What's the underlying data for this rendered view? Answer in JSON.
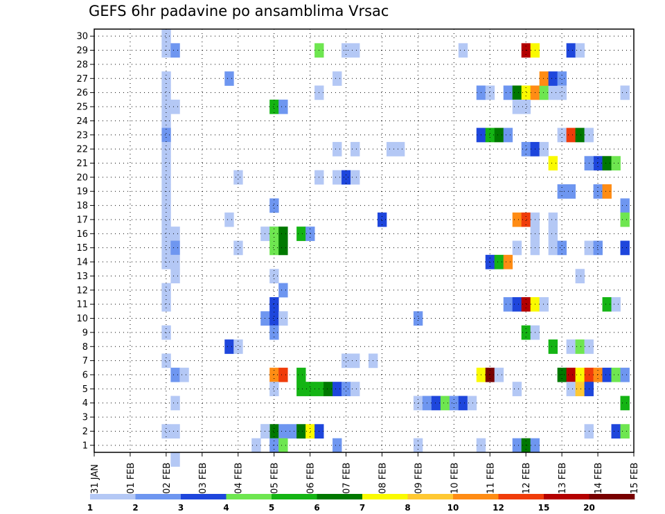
{
  "chart_data": {
    "type": "heatmap",
    "title": "GEFS 6hr padavine po ansamblima Vrsac",
    "xlabel": "",
    "ylabel": "",
    "x_tick_labels": [
      "31 JAN",
      "01 FEB",
      "02 FEB",
      "03 FEB",
      "04 FEB",
      "05 FEB",
      "06 FEB",
      "07 FEB",
      "08 FEB",
      "09 FEB",
      "10 FEB",
      "11 FEB",
      "12 FEB",
      "13 FEB",
      "14 FEB",
      "15 FEB"
    ],
    "x_unit": "days since 31 JAN (6-hourly steps)",
    "y_tick_labels": [
      "1",
      "2",
      "3",
      "4",
      "5",
      "6",
      "7",
      "8",
      "9",
      "10",
      "11",
      "12",
      "13",
      "14",
      "15",
      "16",
      "17",
      "18",
      "19",
      "20",
      "21",
      "22",
      "23",
      "24",
      "25",
      "26",
      "27",
      "28",
      "29",
      "30"
    ],
    "xlim": [
      0,
      15
    ],
    "ylim": [
      0.5,
      30.5
    ],
    "grid": true,
    "legend": {
      "placement": "bottom",
      "labels": [
        "1",
        "2",
        "3",
        "4",
        "5",
        "6",
        "7",
        "8",
        "10",
        "12",
        "15",
        "20"
      ],
      "colors": [
        "#b4c8f5",
        "#6e96f0",
        "#1e46dc",
        "#6ee650",
        "#14b414",
        "#007800",
        "#fafa00",
        "#ffc832",
        "#ff8c14",
        "#f03c0a",
        "#b40000",
        "#780000"
      ]
    },
    "colors": [
      "#b4c8f5",
      "#6e96f0",
      "#1e46dc",
      "#6ee650",
      "#14b414",
      "#007800",
      "#fafa00",
      "#ffc832",
      "#ff8c14",
      "#f03c0a",
      "#b40000",
      "#780000"
    ],
    "cells": [
      [
        2,
        30,
        0
      ],
      [
        2,
        29,
        0
      ],
      [
        2.25,
        29,
        1
      ],
      [
        2,
        27,
        0
      ],
      [
        2,
        26,
        0
      ],
      [
        2,
        25,
        0
      ],
      [
        2.25,
        25,
        0
      ],
      [
        2,
        24,
        0
      ],
      [
        2,
        23,
        1
      ],
      [
        2,
        22,
        0
      ],
      [
        2,
        21,
        0
      ],
      [
        2,
        20,
        0
      ],
      [
        2,
        19,
        0
      ],
      [
        2,
        18,
        0
      ],
      [
        2,
        17,
        0
      ],
      [
        2,
        16,
        0
      ],
      [
        2.25,
        16,
        0
      ],
      [
        2,
        15,
        0
      ],
      [
        2.25,
        15,
        1
      ],
      [
        2,
        14,
        0
      ],
      [
        2.25,
        14,
        0
      ],
      [
        2.25,
        13,
        0
      ],
      [
        2,
        12,
        0
      ],
      [
        2,
        11,
        0
      ],
      [
        2,
        9,
        0
      ],
      [
        2,
        7,
        0
      ],
      [
        2.25,
        6,
        1
      ],
      [
        2.5,
        6,
        0
      ],
      [
        2.25,
        4,
        0
      ],
      [
        2,
        2,
        0
      ],
      [
        2.25,
        2,
        0
      ],
      [
        2.25,
        0,
        0
      ],
      [
        3.75,
        27,
        1
      ],
      [
        3.75,
        17,
        0
      ],
      [
        4.0,
        20,
        0
      ],
      [
        4.0,
        15,
        0
      ],
      [
        3.75,
        8,
        2
      ],
      [
        4.0,
        8,
        0
      ],
      [
        4.75,
        16,
        0
      ],
      [
        5.0,
        16,
        1
      ],
      [
        4.75,
        2,
        0
      ],
      [
        4.5,
        1,
        0
      ],
      [
        5.0,
        25,
        4
      ],
      [
        5.25,
        25,
        1
      ],
      [
        5.0,
        18,
        1
      ],
      [
        5.0,
        16,
        3
      ],
      [
        5.25,
        16,
        5
      ],
      [
        5.0,
        15,
        3
      ],
      [
        5.25,
        15,
        5
      ],
      [
        5.25,
        12,
        1
      ],
      [
        5.0,
        13,
        0
      ],
      [
        4.75,
        10,
        1
      ],
      [
        5.0,
        10,
        2
      ],
      [
        5.25,
        10,
        0
      ],
      [
        5.0,
        11,
        2
      ],
      [
        5.0,
        9,
        1
      ],
      [
        5.0,
        6,
        8
      ],
      [
        5.25,
        6,
        9
      ],
      [
        5.0,
        5,
        0
      ],
      [
        5.0,
        2,
        5
      ],
      [
        5.25,
        2,
        1
      ],
      [
        4.75,
        2,
        0
      ],
      [
        5.0,
        1,
        1
      ],
      [
        5.25,
        1,
        3
      ],
      [
        6.25,
        29,
        3
      ],
      [
        6.25,
        26,
        0
      ],
      [
        6.25,
        20,
        0
      ],
      [
        5.75,
        16,
        4
      ],
      [
        6.0,
        16,
        1
      ],
      [
        5.75,
        6,
        4
      ],
      [
        5.75,
        5,
        4
      ],
      [
        6.0,
        5,
        4
      ],
      [
        6.25,
        5,
        4
      ],
      [
        6.5,
        5,
        5
      ],
      [
        6.75,
        5,
        2
      ],
      [
        7.0,
        5,
        1
      ],
      [
        7.25,
        5,
        0
      ],
      [
        5.5,
        2,
        1
      ],
      [
        5.75,
        2,
        5
      ],
      [
        6.0,
        2,
        6
      ],
      [
        6.25,
        2,
        2
      ],
      [
        7.0,
        29,
        0
      ],
      [
        7.25,
        29,
        0
      ],
      [
        6.75,
        27,
        0
      ],
      [
        6.75,
        22,
        0
      ],
      [
        7.25,
        22,
        0
      ],
      [
        6.75,
        20,
        0
      ],
      [
        7.0,
        20,
        2
      ],
      [
        7.25,
        20,
        0
      ],
      [
        7.0,
        7,
        0
      ],
      [
        7.25,
        7,
        0
      ],
      [
        7.75,
        7,
        0
      ],
      [
        6.75,
        1,
        1
      ],
      [
        8.25,
        22,
        0
      ],
      [
        8.5,
        22,
        0
      ],
      [
        8.0,
        17,
        2
      ],
      [
        9.0,
        10,
        1
      ],
      [
        9.0,
        4,
        0
      ],
      [
        9.25,
        4,
        1
      ],
      [
        9.5,
        4,
        2
      ],
      [
        9.75,
        4,
        3
      ],
      [
        10.0,
        4,
        1
      ],
      [
        10.25,
        4,
        2
      ],
      [
        10.5,
        4,
        0
      ],
      [
        9.0,
        1,
        0
      ],
      [
        10.25,
        29,
        0
      ],
      [
        10.75,
        26,
        1
      ],
      [
        11.0,
        26,
        0
      ],
      [
        10.75,
        23,
        2
      ],
      [
        11.0,
        23,
        4
      ],
      [
        11.25,
        23,
        5
      ],
      [
        11.5,
        23,
        1
      ],
      [
        11.0,
        14,
        2
      ],
      [
        11.25,
        14,
        4
      ],
      [
        11.5,
        14,
        8
      ],
      [
        10.75,
        6,
        6
      ],
      [
        11.0,
        6,
        11
      ],
      [
        11.25,
        6,
        0
      ],
      [
        10.75,
        1,
        0
      ],
      [
        12.0,
        29,
        10
      ],
      [
        12.25,
        29,
        6
      ],
      [
        11.5,
        26,
        1
      ],
      [
        11.75,
        26,
        5
      ],
      [
        12.0,
        26,
        6
      ],
      [
        12.25,
        26,
        8
      ],
      [
        12.5,
        26,
        3
      ],
      [
        12.75,
        26,
        0
      ],
      [
        12.5,
        27,
        8
      ],
      [
        12.75,
        27,
        2
      ],
      [
        13.0,
        27,
        1
      ],
      [
        11.75,
        25,
        0
      ],
      [
        12.0,
        25,
        0
      ],
      [
        12.0,
        22,
        1
      ],
      [
        12.25,
        22,
        2
      ],
      [
        12.5,
        22,
        0
      ],
      [
        11.75,
        17,
        8
      ],
      [
        12.0,
        17,
        9
      ],
      [
        12.25,
        17,
        0
      ],
      [
        12.75,
        17,
        0
      ],
      [
        12.25,
        16,
        0
      ],
      [
        12.75,
        16,
        0
      ],
      [
        11.75,
        15,
        0
      ],
      [
        12.25,
        15,
        0
      ],
      [
        12.75,
        15,
        0
      ],
      [
        13.0,
        15,
        1
      ],
      [
        11.5,
        11,
        1
      ],
      [
        11.75,
        11,
        2
      ],
      [
        12.0,
        11,
        10
      ],
      [
        12.25,
        11,
        6
      ],
      [
        12.5,
        11,
        0
      ],
      [
        12.0,
        9,
        4
      ],
      [
        12.25,
        9,
        0
      ],
      [
        12.75,
        8,
        4
      ],
      [
        11.75,
        5,
        0
      ],
      [
        11.75,
        1,
        1
      ],
      [
        12.0,
        1,
        5
      ],
      [
        12.25,
        1,
        1
      ],
      [
        13.25,
        29,
        2
      ],
      [
        13.5,
        29,
        0
      ],
      [
        13.0,
        26,
        0
      ],
      [
        13.0,
        23,
        0
      ],
      [
        13.25,
        23,
        9
      ],
      [
        13.5,
        23,
        5
      ],
      [
        13.75,
        23,
        0
      ],
      [
        12.75,
        21,
        6
      ],
      [
        13.0,
        19,
        1
      ],
      [
        13.25,
        19,
        1
      ],
      [
        14.0,
        21,
        2
      ],
      [
        13.75,
        21,
        1
      ],
      [
        14.25,
        21,
        5
      ],
      [
        14.5,
        21,
        3
      ],
      [
        14.0,
        19,
        1
      ],
      [
        14.25,
        19,
        8
      ],
      [
        13.75,
        15,
        0
      ],
      [
        14.0,
        15,
        1
      ],
      [
        13.5,
        13,
        0
      ],
      [
        14.25,
        11,
        4
      ],
      [
        14.5,
        11,
        0
      ],
      [
        13.25,
        8,
        0
      ],
      [
        13.5,
        8,
        3
      ],
      [
        13.75,
        8,
        0
      ],
      [
        13.0,
        6,
        5
      ],
      [
        13.25,
        6,
        10
      ],
      [
        13.5,
        6,
        6
      ],
      [
        13.75,
        6,
        9
      ],
      [
        14.0,
        6,
        8
      ],
      [
        14.25,
        6,
        2
      ],
      [
        14.5,
        6,
        3
      ],
      [
        14.75,
        6,
        1
      ],
      [
        13.25,
        5,
        0
      ],
      [
        13.5,
        5,
        7
      ],
      [
        13.75,
        5,
        2
      ],
      [
        13.75,
        2,
        0
      ],
      [
        14.5,
        2,
        2
      ],
      [
        14.75,
        2,
        3
      ],
      [
        14.75,
        26,
        0
      ],
      [
        14.75,
        18,
        1
      ],
      [
        14.75,
        17,
        3
      ],
      [
        14.75,
        15,
        2
      ],
      [
        14.75,
        4,
        4
      ]
    ]
  }
}
